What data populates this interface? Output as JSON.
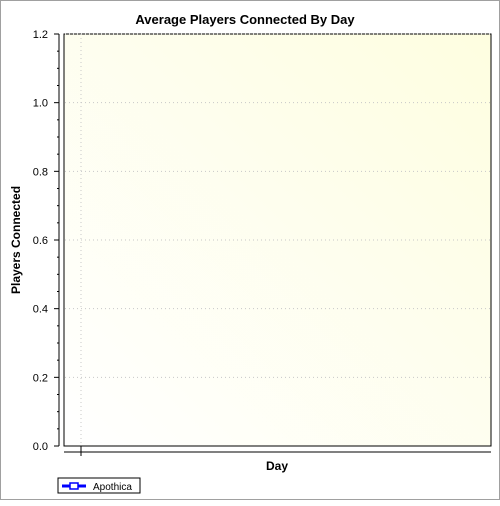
{
  "chart_data": {
    "type": "line",
    "title": "Average Players Connected By Day",
    "xlabel": "Day",
    "ylabel": "Players Connected",
    "ylim": [
      0,
      1.2
    ],
    "y_ticks": [
      "0.0",
      "0.2",
      "0.4",
      "0.6",
      "0.8",
      "1.0",
      "1.2"
    ],
    "y_tick_values": [
      0,
      0.2,
      0.4,
      0.6,
      0.8,
      1.0,
      1.2
    ],
    "y_minor_per_major": 4,
    "grid": true,
    "legend_placement": "bottom-left",
    "series": [
      {
        "name": "Apothica",
        "values": [],
        "color": "#0000ff"
      }
    ],
    "plot_gradient": [
      "#fefee0",
      "#ffffff"
    ]
  }
}
